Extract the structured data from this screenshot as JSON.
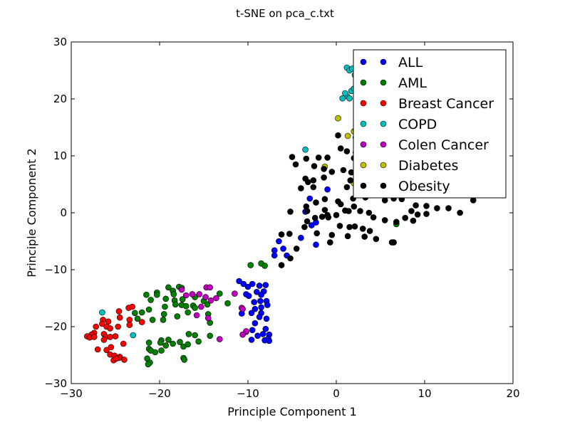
{
  "chart_data": {
    "type": "scatter",
    "title": "t-SNE on pca_c.txt",
    "xlabel": "Principle Component 1",
    "ylabel": "Principle Component 2",
    "xlim": [
      -30,
      20
    ],
    "ylim": [
      -30,
      30
    ],
    "xticks": [
      -30,
      -20,
      -10,
      0,
      10,
      20
    ],
    "yticks": [
      -30,
      -20,
      -10,
      0,
      10,
      20,
      30
    ],
    "xtick_labels": [
      "−30",
      "−20",
      "−10",
      "0",
      "10",
      "20"
    ],
    "ytick_labels": [
      "−30",
      "−20",
      "−10",
      "0",
      "10",
      "20",
      "30"
    ],
    "grid": false,
    "legend_position": "top-right",
    "series": [
      {
        "name": "ALL",
        "color": "#0000ff",
        "points": [
          [
            -11,
            -12
          ],
          [
            -10.5,
            -12.5
          ],
          [
            -10,
            -13
          ],
          [
            -9.5,
            -12.5
          ],
          [
            -8.7,
            -12.8
          ],
          [
            -8,
            -12.7
          ],
          [
            -8.2,
            -13.8
          ],
          [
            -9,
            -13.9
          ],
          [
            -10.2,
            -14.3
          ],
          [
            -9.9,
            -14.6
          ],
          [
            -8.5,
            -14.4
          ],
          [
            -7.9,
            -15.5
          ],
          [
            -8.6,
            -15.5
          ],
          [
            -9.3,
            -15.7
          ],
          [
            -7.8,
            -16.2
          ],
          [
            -8.5,
            -16.6
          ],
          [
            -9.2,
            -16.9
          ],
          [
            -8.5,
            -17.6
          ],
          [
            -9.6,
            -17.6
          ],
          [
            -10.7,
            -17.7
          ],
          [
            -8.7,
            -18.3
          ],
          [
            -7.9,
            -18.6
          ],
          [
            -9.2,
            -19.4
          ],
          [
            -8,
            -20.4
          ],
          [
            -9.5,
            -20.6
          ],
          [
            -10.2,
            -20.9
          ],
          [
            -8.3,
            -21.3
          ],
          [
            -7.6,
            -21.4
          ],
          [
            -8.9,
            -21.6
          ],
          [
            -7.7,
            -22.1
          ],
          [
            -8.1,
            -22.4
          ],
          [
            -7.6,
            -22.5
          ],
          [
            -9.6,
            -22.3
          ],
          [
            -6.5,
            -5
          ],
          [
            -7,
            -6.6
          ],
          [
            -6,
            -6.3
          ],
          [
            -5.6,
            -7.5
          ],
          [
            -7,
            -7.5
          ],
          [
            -4,
            -4.4
          ],
          [
            -3.5,
            0.2
          ],
          [
            -2.8,
            -2.2
          ],
          [
            -2.3,
            -1.7
          ],
          [
            -2.3,
            -5.6
          ],
          [
            -1,
            4.1
          ],
          [
            -3,
            2.5
          ],
          [
            3,
            6
          ]
        ]
      },
      {
        "name": "AML",
        "color": "#008000",
        "points": [
          [
            -9.7,
            -9.2
          ],
          [
            -8.5,
            -8.9
          ],
          [
            -8.1,
            -9.3
          ],
          [
            -19,
            -13.1
          ],
          [
            -18.5,
            -13.7
          ],
          [
            -17.8,
            -13
          ],
          [
            -17.5,
            -13.2
          ],
          [
            -20.3,
            -14
          ],
          [
            -21.5,
            -14.4
          ],
          [
            -20.3,
            -14.4
          ],
          [
            -18.4,
            -14.3
          ],
          [
            -21,
            -15.3
          ],
          [
            -19.3,
            -15.1
          ],
          [
            -18.3,
            -15.4
          ],
          [
            -17.4,
            -15.2
          ],
          [
            -16,
            -14.8
          ],
          [
            -21.2,
            -17
          ],
          [
            -22,
            -17.5
          ],
          [
            -19.4,
            -16.5
          ],
          [
            -18.2,
            -16.1
          ],
          [
            -17.5,
            -16.2
          ],
          [
            -17,
            -16.4
          ],
          [
            -16.2,
            -16.3
          ],
          [
            -16.8,
            -17.5
          ],
          [
            -22.8,
            -17.6
          ],
          [
            -22.5,
            -18.6
          ],
          [
            -20.8,
            -18.8
          ],
          [
            -19.6,
            -18.8
          ],
          [
            -19.5,
            -17.8
          ],
          [
            -18,
            -18.2
          ],
          [
            -16,
            -16.7
          ],
          [
            -15,
            -15.5
          ],
          [
            -14.6,
            -16.1
          ],
          [
            -13.2,
            -14.2
          ],
          [
            -12.3,
            -15.9
          ],
          [
            -14.5,
            -17.8
          ],
          [
            -14.3,
            -19.3
          ],
          [
            -14.3,
            -21.6
          ],
          [
            -16,
            -21.5
          ],
          [
            -16.7,
            -21.3
          ],
          [
            -19,
            -22.3
          ],
          [
            -19.8,
            -22.4
          ],
          [
            -21.2,
            -22.8
          ],
          [
            -17.7,
            -22.7
          ],
          [
            -19.9,
            -22.8
          ],
          [
            -21.2,
            -23.9
          ],
          [
            -19.3,
            -23.3
          ],
          [
            -18.5,
            -23
          ],
          [
            -17.3,
            -23.5
          ],
          [
            -20.5,
            -24.5
          ],
          [
            -15.6,
            -22.6
          ],
          [
            -16.8,
            -23.1
          ],
          [
            -21,
            -24.2
          ],
          [
            -19.8,
            -24.2
          ],
          [
            -17.3,
            -25.5
          ],
          [
            -17.2,
            -25.8
          ],
          [
            -21.4,
            -25.6
          ],
          [
            -21.1,
            -26.3
          ],
          [
            -21.3,
            -26.6
          ],
          [
            6.8,
            -2
          ]
        ]
      },
      {
        "name": "Breast Cancer",
        "color": "#ff0000",
        "points": [
          [
            -23.5,
            -16.7
          ],
          [
            -23.1,
            -16.5
          ],
          [
            -24.6,
            -17.3
          ],
          [
            -26.4,
            -18.8
          ],
          [
            -25.8,
            -19.1
          ],
          [
            -24.5,
            -18.4
          ],
          [
            -23.4,
            -18.8
          ],
          [
            -22,
            -19.2
          ],
          [
            -23.4,
            -19.7
          ],
          [
            -26.5,
            -19.5
          ],
          [
            -27.2,
            -20
          ],
          [
            -26,
            -20
          ],
          [
            -25.6,
            -20.3
          ],
          [
            -24.7,
            -20
          ],
          [
            -26.3,
            -21.3
          ],
          [
            -27.4,
            -21.1
          ],
          [
            -27.7,
            -21.4
          ],
          [
            -28.2,
            -21.7
          ],
          [
            -27.9,
            -21.9
          ],
          [
            -27.4,
            -21.8
          ],
          [
            -26.1,
            -21.8
          ],
          [
            -25.6,
            -21.8
          ],
          [
            -25,
            -21.7
          ],
          [
            -26.3,
            -22.3
          ],
          [
            -25.5,
            -23.6
          ],
          [
            -24.1,
            -23
          ],
          [
            -27,
            -24
          ],
          [
            -26,
            -24.1
          ],
          [
            -25.6,
            -24.9
          ],
          [
            -25.1,
            -25.1
          ],
          [
            -24.5,
            -25.3
          ],
          [
            -24.6,
            -25.5
          ],
          [
            -25.2,
            -25.9
          ],
          [
            -24.9,
            -25.6
          ],
          [
            -24,
            -25.8
          ]
        ]
      },
      {
        "name": "COPD",
        "color": "#00bfbf",
        "points": [
          [
            -26.5,
            -17.5
          ],
          [
            -23,
            -21.5
          ],
          [
            -3.5,
            11.1
          ],
          [
            1.2,
            25.5
          ],
          [
            1.5,
            25
          ],
          [
            1.8,
            25.3
          ],
          [
            2.1,
            24.2
          ],
          [
            1.2,
            20.5
          ],
          [
            1.7,
            21.4
          ],
          [
            2,
            21.8
          ],
          [
            1.5,
            20.1
          ],
          [
            0.7,
            20.1
          ],
          [
            1,
            21
          ]
        ]
      },
      {
        "name": "Colen Cancer",
        "color": "#bf00bf",
        "points": [
          [
            -17.5,
            -13.5
          ],
          [
            -17,
            -14.5
          ],
          [
            -16.3,
            -14.3
          ],
          [
            -15.5,
            -14.3
          ],
          [
            -15.3,
            -16.5
          ],
          [
            -14.7,
            -13.1
          ],
          [
            -14.3,
            -13.1
          ],
          [
            -14.8,
            -14.8
          ],
          [
            -14.2,
            -15.4
          ],
          [
            -15.8,
            -18
          ],
          [
            -13.6,
            -15
          ],
          [
            -11.5,
            -14.2
          ],
          [
            -10.7,
            -16.7
          ],
          [
            -10.6,
            -16.9
          ],
          [
            -10.2,
            -20.8
          ],
          [
            -10.6,
            -21.4
          ],
          [
            -14.5,
            -18.5
          ],
          [
            -13.2,
            -22.2
          ]
        ]
      },
      {
        "name": "Diabetes",
        "color": "#bfbf00",
        "points": [
          [
            -1.3,
            8.1
          ],
          [
            0.2,
            16.6
          ],
          [
            1.3,
            13.5
          ],
          [
            2,
            14.3
          ],
          [
            2.2,
            14.6
          ],
          [
            2.5,
            13.6
          ],
          [
            2.2,
            13.2
          ],
          [
            3,
            14.2
          ],
          [
            3.3,
            13.2
          ],
          [
            2,
            5.2
          ]
        ]
      },
      {
        "name": "Obesity",
        "color": "#000000",
        "points": [
          [
            0.2,
            13.6
          ],
          [
            -1,
            9.7
          ],
          [
            -2,
            9.7
          ],
          [
            -3.4,
            9.5
          ],
          [
            -5,
            9.8
          ],
          [
            -4.6,
            8.5
          ],
          [
            -2.5,
            8.2
          ],
          [
            -1.4,
            7.7
          ],
          [
            -0.5,
            7.2
          ],
          [
            0.8,
            7.5
          ],
          [
            -3.5,
            6
          ],
          [
            -2.6,
            5.7
          ],
          [
            -2.6,
            4.5
          ],
          [
            -1.4,
            6.2
          ],
          [
            -4,
            4.3
          ],
          [
            -3.4,
            1.1
          ],
          [
            -2.3,
            1.8
          ],
          [
            -1.3,
            2.4
          ],
          [
            0.2,
            2
          ],
          [
            0.5,
            1.5
          ],
          [
            -5.2,
            0.2
          ],
          [
            -3.3,
            0.3
          ],
          [
            -1.3,
            0.5
          ],
          [
            -1,
            -0.4
          ],
          [
            0,
            -0.4
          ],
          [
            1,
            0.4
          ],
          [
            1.4,
            0.3
          ],
          [
            2,
            1.1
          ],
          [
            -0.9,
            -0.8
          ],
          [
            -1.6,
            -0.7
          ],
          [
            -2.4,
            -0.9
          ],
          [
            -3.3,
            -1.5
          ],
          [
            -5.3,
            -3.7
          ],
          [
            -6.2,
            -3.8
          ],
          [
            -3.6,
            -2.5
          ],
          [
            -2.2,
            -3.6
          ],
          [
            -0.5,
            -3.9
          ],
          [
            -0.7,
            -5.2
          ],
          [
            0.4,
            -2.3
          ],
          [
            1.5,
            -2.5
          ],
          [
            2.1,
            -2.4
          ],
          [
            3,
            -2.8
          ],
          [
            3.8,
            -3.2
          ],
          [
            1.3,
            -4.1
          ],
          [
            3.2,
            -4.2
          ],
          [
            4.5,
            -4.6
          ],
          [
            2.7,
            0.3
          ],
          [
            3.7,
            0
          ],
          [
            4.2,
            -0.8
          ],
          [
            5.5,
            -1.3
          ],
          [
            1.2,
            4.5
          ],
          [
            1.9,
            2.5
          ],
          [
            3.3,
            2.7
          ],
          [
            3.8,
            4.4
          ],
          [
            4.8,
            4.5
          ],
          [
            5.5,
            2.2
          ],
          [
            6.5,
            2.5
          ],
          [
            7.4,
            2.4
          ],
          [
            9,
            1.3
          ],
          [
            10.2,
            1.2
          ],
          [
            11.4,
            0.8
          ],
          [
            12.7,
            0.8
          ],
          [
            14,
            0
          ],
          [
            8.5,
            0.3
          ],
          [
            9.2,
            -0.3
          ],
          [
            10.2,
            -0.2
          ],
          [
            7.8,
            -0.9
          ],
          [
            8.7,
            -1.4
          ],
          [
            6.8,
            -1.6
          ],
          [
            6.5,
            -5.2
          ],
          [
            6.3,
            -5.2
          ],
          [
            -4.5,
            -6.3
          ],
          [
            -5.2,
            -8
          ],
          [
            -6.2,
            -9.2
          ],
          [
            0.5,
            11.3
          ],
          [
            1.2,
            10.8
          ],
          [
            2.2,
            10.6
          ],
          [
            3.6,
            9.1
          ],
          [
            4.2,
            8.8
          ],
          [
            5.5,
            8.4
          ],
          [
            2,
            9.6
          ],
          [
            2.8,
            9.2
          ],
          [
            1.7,
            7.1
          ],
          [
            2.4,
            7.2
          ],
          [
            1.6,
            5.7
          ],
          [
            -3.2,
            5.4
          ],
          [
            15.5,
            2.2
          ]
        ]
      }
    ]
  }
}
